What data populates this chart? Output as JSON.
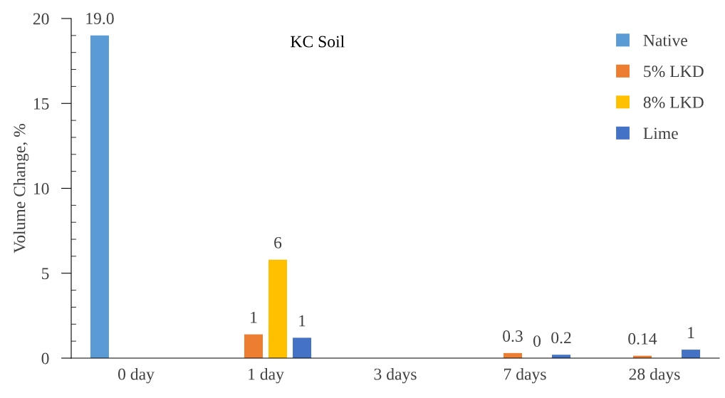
{
  "chart_data": {
    "type": "bar",
    "title": "KC Soil",
    "ylabel": "Volume Change, %",
    "categories": [
      "0 day",
      "1 day",
      "3 days",
      "7 days",
      "28 days"
    ],
    "series": [
      {
        "name": "Native",
        "color": "#5b9bd5",
        "values": [
          19.0,
          null,
          null,
          null,
          null
        ],
        "value_labels": [
          "19.0",
          null,
          null,
          null,
          null
        ]
      },
      {
        "name": "5% LKD",
        "color": "#ed7d31",
        "values": [
          null,
          1.4,
          null,
          0.3,
          0.14
        ],
        "value_labels": [
          null,
          "1",
          null,
          "0.3",
          "0.14"
        ]
      },
      {
        "name": "8% LKD",
        "color": "#ffc000",
        "values": [
          null,
          5.8,
          null,
          0,
          null
        ],
        "value_labels": [
          null,
          "6",
          null,
          "0",
          null
        ]
      },
      {
        "name": "Lime",
        "color": "#4472c4",
        "values": [
          null,
          1.2,
          null,
          0.2,
          0.5
        ],
        "value_labels": [
          null,
          "1",
          null,
          "0.2",
          "1"
        ]
      }
    ],
    "ylim": [
      0,
      20
    ],
    "yticks": [
      0,
      5,
      10,
      15,
      20
    ],
    "grid": false,
    "legend": "top right"
  }
}
